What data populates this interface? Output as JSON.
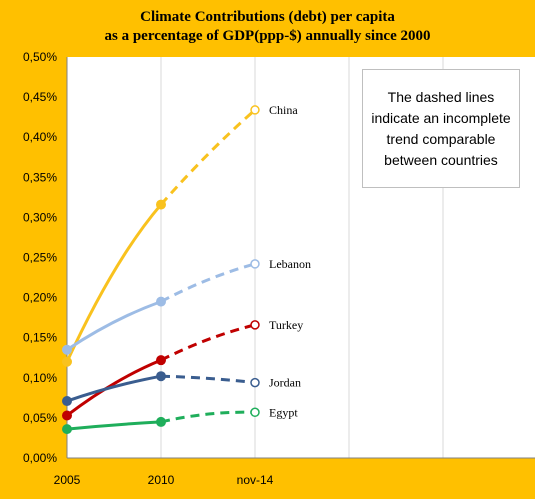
{
  "chart_data": {
    "type": "line",
    "title_line1": "Climate Contributions (debt)  per capita",
    "title_line2": "as a percentage of GDP(ppp-$) annually since 2000",
    "categories": [
      "2005",
      "2010",
      "nov-14"
    ],
    "ylim": [
      0,
      0.5
    ],
    "yticks": [
      "0,00%",
      "0,05%",
      "0,10%",
      "0,15%",
      "0,20%",
      "0,25%",
      "0,30%",
      "0,35%",
      "0,40%",
      "0,45%",
      "0,50%"
    ],
    "grid": "vertical",
    "annotation": "The dashed lines indicate an incomplete trend comparable between countries",
    "series": [
      {
        "name": "China",
        "color": "#F9C21E",
        "values": [
          0.12,
          0.316,
          0.434
        ]
      },
      {
        "name": "Lebanon",
        "color": "#9DBCE5",
        "values": [
          0.135,
          0.195,
          0.242
        ]
      },
      {
        "name": "Turkey",
        "color": "#C00000",
        "values": [
          0.053,
          0.122,
          0.166
        ]
      },
      {
        "name": "Jordan",
        "color": "#3A5D8F",
        "values": [
          0.071,
          0.102,
          0.094
        ]
      },
      {
        "name": "Egypt",
        "color": "#1FAE5B",
        "values": [
          0.036,
          0.045,
          0.057
        ]
      }
    ]
  }
}
